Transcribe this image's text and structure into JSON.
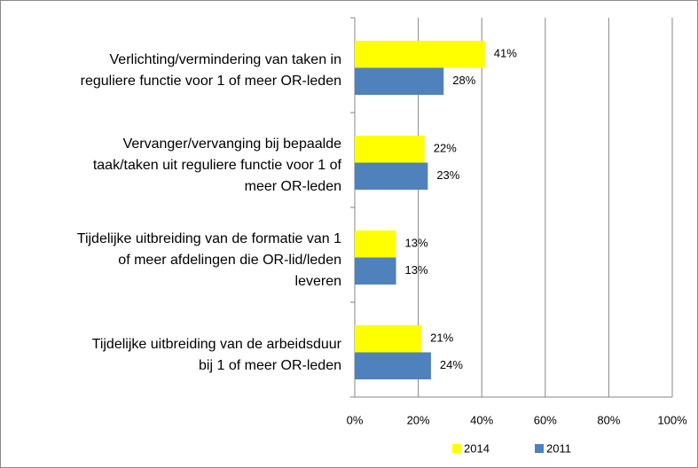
{
  "chart_data": {
    "type": "barh",
    "categories": [
      "Verlichting/vermindering van taken in\nreguliere functie voor 1 of meer OR-leden",
      "Vervanger/vervanging bij bepaalde\ntaak/taken uit reguliere functie voor 1 of\nmeer OR-leden",
      "Tijdelijke uitbreiding van de formatie van 1\nof meer afdelingen die OR-lid/leden\nleveren",
      "Tijdelijke uitbreiding van de arbeidsduur\nbij 1 of meer OR-leden"
    ],
    "series": [
      {
        "name": "2014",
        "color": "#ffff00",
        "values": [
          41,
          22,
          13,
          21
        ],
        "value_labels": [
          "41%",
          "22%",
          "13%",
          "21%"
        ]
      },
      {
        "name": "2011",
        "color": "#4f81bd",
        "values": [
          28,
          23,
          13,
          24
        ],
        "value_labels": [
          "28%",
          "23%",
          "13%",
          "24%"
        ]
      }
    ],
    "xlim": [
      0,
      100
    ],
    "xticks": [
      {
        "value": 0,
        "label": "0%"
      },
      {
        "value": 20,
        "label": "20%"
      },
      {
        "value": 40,
        "label": "40%"
      },
      {
        "value": 60,
        "label": "60%"
      },
      {
        "value": 80,
        "label": "80%"
      },
      {
        "value": 100,
        "label": "100%"
      }
    ],
    "grid": true,
    "legend": "bottom"
  }
}
